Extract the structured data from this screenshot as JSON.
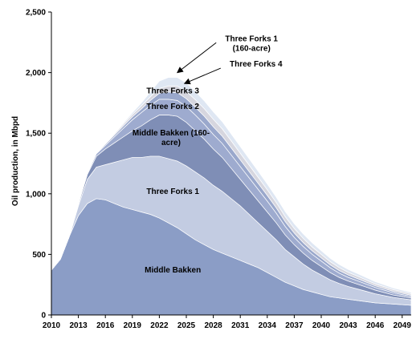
{
  "chart_data": {
    "type": "area",
    "stacked": true,
    "title": "",
    "ylabel": "Oil production, in Mbpd",
    "xlabel": "",
    "xlim": [
      2010,
      2050
    ],
    "ylim": [
      0,
      2500
    ],
    "yticks": [
      0,
      500,
      1000,
      1500,
      2000,
      2500
    ],
    "ytick_labels": [
      "0",
      "500",
      "1,000",
      "1,500",
      "2,000",
      "2,500"
    ],
    "xticks": [
      2010,
      2013,
      2016,
      2019,
      2022,
      2025,
      2028,
      2031,
      2034,
      2037,
      2040,
      2043,
      2046,
      2049
    ],
    "xtick_labels": [
      "2010",
      "2013",
      "2016",
      "2019",
      "2022",
      "2025",
      "2028",
      "2031",
      "2034",
      "2037",
      "2040",
      "2043",
      "2046",
      "2049"
    ],
    "grid": false,
    "legend": "none (labels drawn on areas)",
    "x": [
      2010,
      2011,
      2012,
      2013,
      2014,
      2015,
      2016,
      2017,
      2018,
      2019,
      2020,
      2021,
      2022,
      2023,
      2024,
      2025,
      2026,
      2027,
      2028,
      2029,
      2030,
      2031,
      2032,
      2033,
      2034,
      2035,
      2036,
      2037,
      2038,
      2039,
      2040,
      2041,
      2042,
      2043,
      2044,
      2045,
      2046,
      2047,
      2048,
      2049,
      2050
    ],
    "series": [
      {
        "name": "Middle Bakken",
        "color": "#8b9dc6",
        "values": [
          370,
          460,
          650,
          820,
          920,
          960,
          950,
          920,
          890,
          870,
          850,
          830,
          800,
          760,
          720,
          670,
          620,
          580,
          540,
          510,
          480,
          450,
          420,
          390,
          350,
          310,
          270,
          240,
          210,
          190,
          170,
          150,
          140,
          130,
          120,
          110,
          100,
          95,
          90,
          85,
          80
        ]
      },
      {
        "name": "Three Forks 1",
        "color": "#c3cce2",
        "values": [
          0,
          0,
          0,
          80,
          200,
          260,
          290,
          340,
          390,
          430,
          450,
          480,
          510,
          530,
          550,
          560,
          560,
          550,
          530,
          510,
          480,
          450,
          410,
          370,
          340,
          310,
          270,
          240,
          210,
          180,
          160,
          140,
          120,
          105,
          95,
          85,
          75,
          65,
          55,
          50,
          45
        ]
      },
      {
        "name": "Middle Bakken (160-acre)",
        "color": "#7f8eb6",
        "values": [
          0,
          0,
          0,
          15,
          40,
          90,
          130,
          160,
          190,
          220,
          260,
          300,
          340,
          360,
          370,
          360,
          340,
          320,
          300,
          280,
          250,
          220,
          200,
          180,
          160,
          140,
          120,
          100,
          90,
          80,
          70,
          60,
          50,
          45,
          40,
          35,
          30,
          25,
          20,
          18,
          15
        ]
      },
      {
        "name": "Three Forks 2",
        "color": "#9eabcf",
        "values": [
          0,
          0,
          0,
          5,
          10,
          20,
          30,
          50,
          70,
          90,
          110,
          120,
          130,
          130,
          130,
          130,
          130,
          125,
          120,
          115,
          110,
          105,
          100,
          95,
          90,
          80,
          70,
          60,
          55,
          50,
          45,
          40,
          35,
          30,
          28,
          25,
          22,
          20,
          18,
          15,
          13
        ]
      },
      {
        "name": "Three Forks 3",
        "color": "#9aa8cc",
        "values": [
          0,
          0,
          0,
          0,
          0,
          5,
          10,
          15,
          20,
          25,
          30,
          40,
          50,
          60,
          65,
          65,
          65,
          65,
          63,
          60,
          58,
          55,
          52,
          50,
          47,
          44,
          40,
          36,
          32,
          29,
          26,
          24,
          22,
          20,
          18,
          16,
          14,
          13,
          12,
          11,
          10
        ]
      },
      {
        "name": "Three Forks 4",
        "color": "#d6d6df",
        "values": [
          0,
          0,
          0,
          0,
          0,
          0,
          5,
          10,
          15,
          20,
          25,
          30,
          40,
          50,
          55,
          60,
          62,
          62,
          62,
          60,
          58,
          55,
          53,
          50,
          47,
          44,
          41,
          38,
          35,
          32,
          29,
          26,
          24,
          22,
          20,
          18,
          16,
          15,
          14,
          13,
          12
        ]
      },
      {
        "name": "Three Forks 1 (160-acre)",
        "color": "#dfe7f3",
        "values": [
          0,
          0,
          0,
          0,
          0,
          0,
          0,
          5,
          10,
          15,
          25,
          40,
          60,
          70,
          70,
          70,
          68,
          65,
          62,
          60,
          57,
          55,
          53,
          50,
          47,
          44,
          42,
          40,
          37,
          34,
          31,
          28,
          26,
          24,
          22,
          20,
          18,
          16,
          14,
          13,
          12
        ]
      }
    ],
    "area_labels": [
      {
        "series": "Middle Bakken",
        "lines": [
          "Middle Bakken"
        ],
        "at_x": 2023.5,
        "at_y": 350
      },
      {
        "series": "Three Forks 1",
        "lines": [
          "Three Forks 1"
        ],
        "at_x": 2023.5,
        "at_y": 1000
      },
      {
        "series": "Middle Bakken (160-acre)",
        "lines": [
          "Middle Bakken (160-",
          "acre)"
        ],
        "at_x": 2023.3,
        "at_y": 1480
      },
      {
        "series": "Three Forks 2",
        "lines": [
          "Three Forks 2"
        ],
        "at_x": 2023.5,
        "at_y": 1700
      },
      {
        "series": "Three Forks 3",
        "lines": [
          "Three Forks 3"
        ],
        "at_x": 2023.5,
        "at_y": 1830
      }
    ],
    "callouts": [
      {
        "series": "Three Forks 1 (160-acre)",
        "lines": [
          "Three Forks 1",
          "(160-acre)"
        ],
        "text_x": 2031,
        "text_y": 2260,
        "point_x": 2024,
        "point_y": 2000
      },
      {
        "series": "Three Forks 4",
        "lines": [
          "Three Forks 4"
        ],
        "text_x": 2031.5,
        "text_y": 2050,
        "point_x": 2024.8,
        "point_y": 1910
      }
    ]
  }
}
